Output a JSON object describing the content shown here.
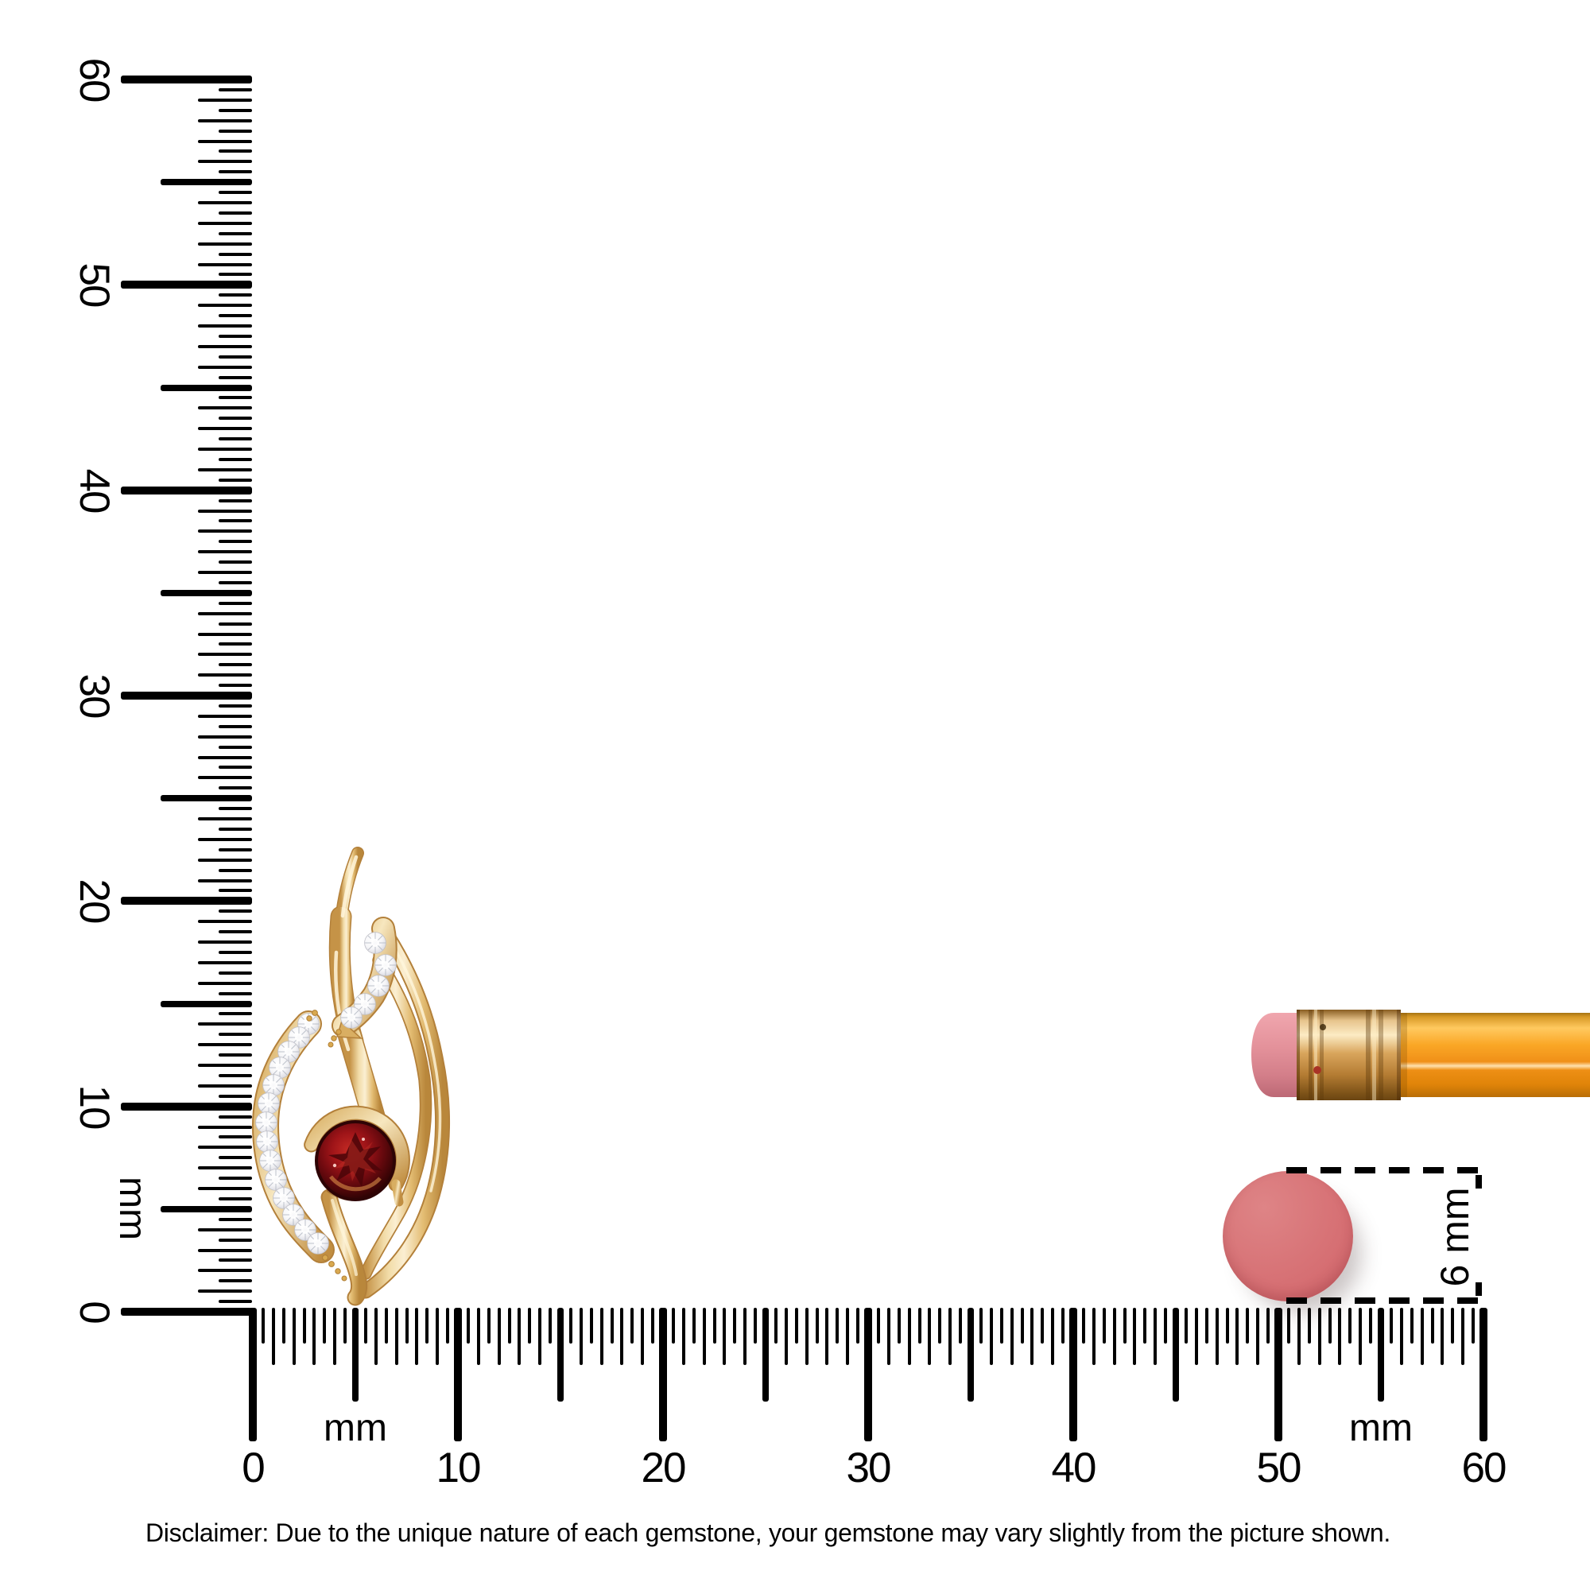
{
  "vertical_ruler": {
    "unit_label": "mm",
    "min_mm": 0,
    "max_mm": 60,
    "tick_step_mm": 0.5,
    "major_labels": [
      60,
      50,
      40,
      30,
      20,
      10,
      0
    ]
  },
  "horizontal_ruler": {
    "unit_label_left": "mm",
    "unit_label_right": "mm",
    "min_mm": 0,
    "max_mm": 60,
    "tick_step_mm": 0.5,
    "major_labels": [
      0,
      10,
      20,
      30,
      40,
      50,
      60
    ]
  },
  "size_indicator": {
    "label": "6 mm"
  },
  "disclaimer": "Disclaimer: Due to the unique nature of each gemstone, your gemstone may vary slightly from the picture shown.",
  "objects": {
    "pendant": {
      "name": "gold flame pendant with round garnet and diamond accents",
      "gold_color": "#E9C987",
      "gem_color": "#7A0E12",
      "diamond_color": "#FFFFFF"
    },
    "pencil": {
      "name": "pencil eraser end shown for scale",
      "body_color": "#F79E1E",
      "ferrule_color": "#D9A55C",
      "eraser_color": "#E18A93"
    },
    "scale_disc": {
      "name": "6 mm reference disc",
      "color": "#D66F73",
      "diameter_label": "6 mm"
    }
  }
}
